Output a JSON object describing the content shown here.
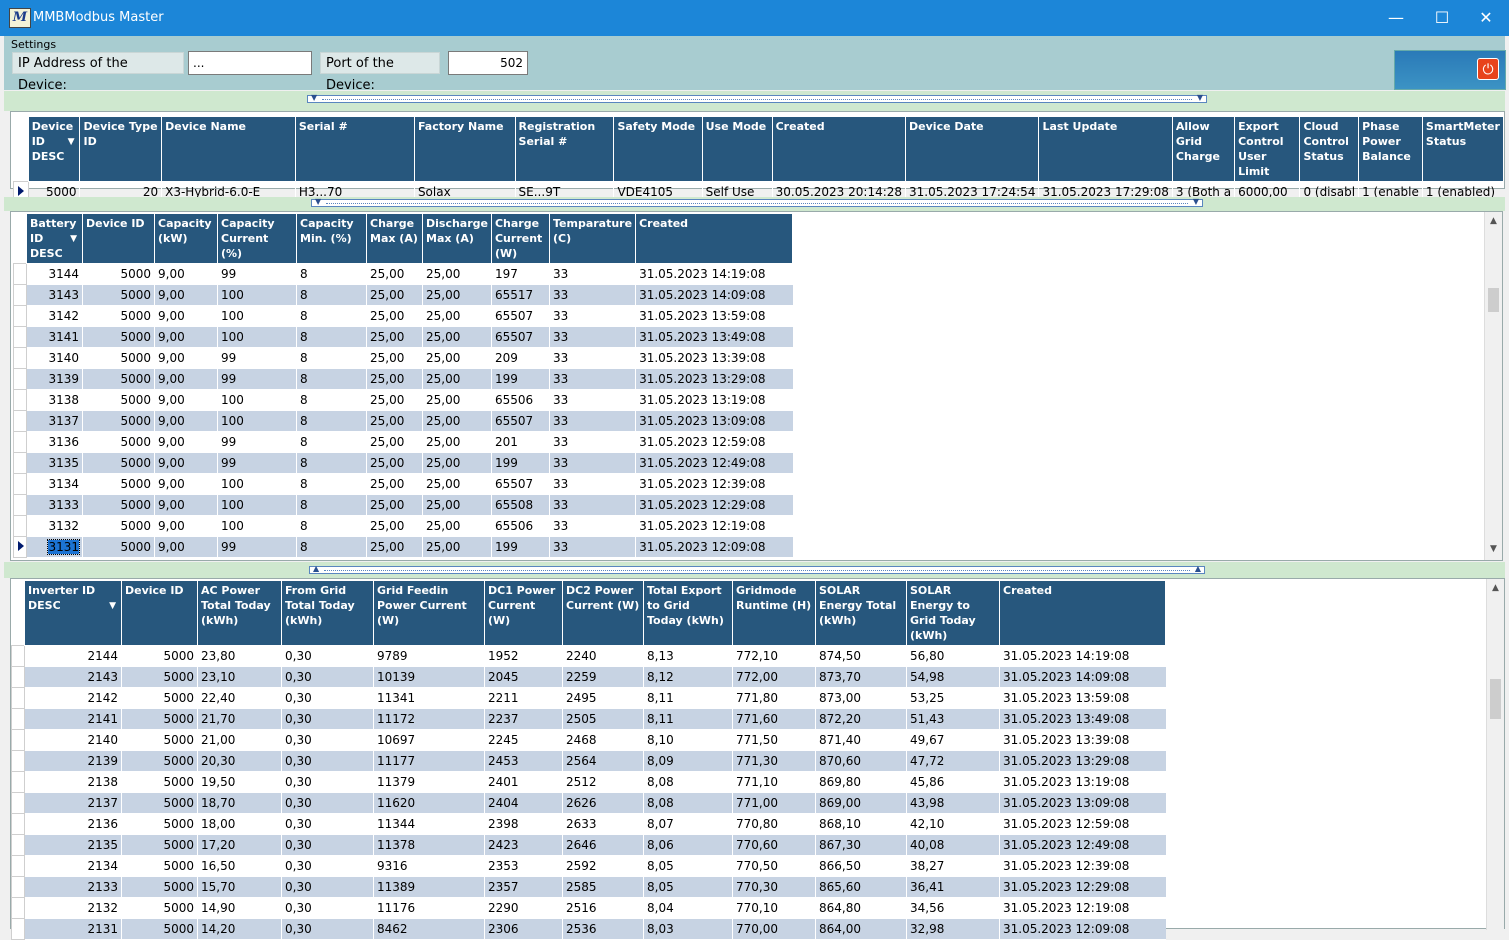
{
  "window": {
    "title": "MMBModbus Master",
    "icon_letter": "M",
    "minimize": "—",
    "maximize": "☐",
    "close": "✕"
  },
  "settings": {
    "group_label": "Settings",
    "ip_label": "IP Address of the Device:",
    "ip_value": "...",
    "port_label": "Port of the Device:",
    "port_value": "502",
    "power_icon": "power-icon"
  },
  "device_grid": {
    "headers": [
      "Device ID DESC",
      "Device Type ID",
      "Device Name",
      "Serial #",
      "Factory Name",
      "Registration Serial #",
      "Safety Mode",
      "Use Mode",
      "Created",
      "Device Date",
      "Last Update",
      "Allow Grid Charge",
      "Export Control User Limit",
      "Cloud Control Status",
      "Phase Power Balance",
      "SmartMeter Status"
    ],
    "rows": [
      [
        "5000",
        "20",
        "X3-Hybrid-6.0-E",
        "H3...70",
        "Solax",
        "SE...9T",
        "VDE4105",
        "Self Use",
        "30.05.2023 20:14:28",
        "31.05.2023 17:24:54",
        "31.05.2023 17:29:08",
        "3 (Both a",
        "6000,00",
        "0 (disabl",
        "1 (enable",
        "1 (enabled)"
      ]
    ]
  },
  "battery_grid": {
    "headers": [
      "Battery ID DESC",
      "Device ID",
      "Capacity (kW)",
      "Capacity Current (%)",
      "Capacity Min. (%)",
      "Charge Max (A)",
      "Discharge Max (A)",
      "Charge Current (W)",
      "Temparature (C)",
      "Created"
    ],
    "rows": [
      [
        "3144",
        "5000",
        "9,00",
        "99",
        "8",
        "25,00",
        "25,00",
        "197",
        "33",
        "31.05.2023 14:19:08"
      ],
      [
        "3143",
        "5000",
        "9,00",
        "100",
        "8",
        "25,00",
        "25,00",
        "65517",
        "33",
        "31.05.2023 14:09:08"
      ],
      [
        "3142",
        "5000",
        "9,00",
        "100",
        "8",
        "25,00",
        "25,00",
        "65507",
        "33",
        "31.05.2023 13:59:08"
      ],
      [
        "3141",
        "5000",
        "9,00",
        "100",
        "8",
        "25,00",
        "25,00",
        "65507",
        "33",
        "31.05.2023 13:49:08"
      ],
      [
        "3140",
        "5000",
        "9,00",
        "99",
        "8",
        "25,00",
        "25,00",
        "209",
        "33",
        "31.05.2023 13:39:08"
      ],
      [
        "3139",
        "5000",
        "9,00",
        "99",
        "8",
        "25,00",
        "25,00",
        "199",
        "33",
        "31.05.2023 13:29:08"
      ],
      [
        "3138",
        "5000",
        "9,00",
        "100",
        "8",
        "25,00",
        "25,00",
        "65506",
        "33",
        "31.05.2023 13:19:08"
      ],
      [
        "3137",
        "5000",
        "9,00",
        "100",
        "8",
        "25,00",
        "25,00",
        "65507",
        "33",
        "31.05.2023 13:09:08"
      ],
      [
        "3136",
        "5000",
        "9,00",
        "99",
        "8",
        "25,00",
        "25,00",
        "201",
        "33",
        "31.05.2023 12:59:08"
      ],
      [
        "3135",
        "5000",
        "9,00",
        "99",
        "8",
        "25,00",
        "25,00",
        "199",
        "33",
        "31.05.2023 12:49:08"
      ],
      [
        "3134",
        "5000",
        "9,00",
        "100",
        "8",
        "25,00",
        "25,00",
        "65507",
        "33",
        "31.05.2023 12:39:08"
      ],
      [
        "3133",
        "5000",
        "9,00",
        "100",
        "8",
        "25,00",
        "25,00",
        "65508",
        "33",
        "31.05.2023 12:29:08"
      ],
      [
        "3132",
        "5000",
        "9,00",
        "100",
        "8",
        "25,00",
        "25,00",
        "65506",
        "33",
        "31.05.2023 12:19:08"
      ],
      [
        "3131",
        "5000",
        "9,00",
        "99",
        "8",
        "25,00",
        "25,00",
        "199",
        "33",
        "31.05.2023 12:09:08"
      ]
    ]
  },
  "inverter_grid": {
    "headers": [
      "Inverter ID DESC",
      "Device ID",
      "AC Power Total Today (kWh)",
      "From Grid Total Today (kWh)",
      "Grid Feedin Power Current (W)",
      "DC1 Power Current (W)",
      "DC2 Power Current (W)",
      "Total Export to Grid Today (kWh)",
      "Gridmode Runtime (H)",
      "SOLAR Energy Total (kWh)",
      "SOLAR Energy to Grid Today (kWh)",
      "Created"
    ],
    "rows": [
      [
        "2144",
        "5000",
        "23,80",
        "0,30",
        "9789",
        "1952",
        "2240",
        "8,13",
        "772,10",
        "874,50",
        "56,80",
        "31.05.2023 14:19:08"
      ],
      [
        "2143",
        "5000",
        "23,10",
        "0,30",
        "10139",
        "2045",
        "2259",
        "8,12",
        "772,00",
        "873,70",
        "54,98",
        "31.05.2023 14:09:08"
      ],
      [
        "2142",
        "5000",
        "22,40",
        "0,30",
        "11341",
        "2211",
        "2495",
        "8,11",
        "771,80",
        "873,00",
        "53,25",
        "31.05.2023 13:59:08"
      ],
      [
        "2141",
        "5000",
        "21,70",
        "0,30",
        "11172",
        "2237",
        "2505",
        "8,11",
        "771,60",
        "872,20",
        "51,43",
        "31.05.2023 13:49:08"
      ],
      [
        "2140",
        "5000",
        "21,00",
        "0,30",
        "10697",
        "2245",
        "2468",
        "8,10",
        "771,50",
        "871,40",
        "49,67",
        "31.05.2023 13:39:08"
      ],
      [
        "2139",
        "5000",
        "20,30",
        "0,30",
        "11177",
        "2453",
        "2564",
        "8,09",
        "771,30",
        "870,60",
        "47,72",
        "31.05.2023 13:29:08"
      ],
      [
        "2138",
        "5000",
        "19,50",
        "0,30",
        "11379",
        "2401",
        "2512",
        "8,08",
        "771,10",
        "869,80",
        "45,86",
        "31.05.2023 13:19:08"
      ],
      [
        "2137",
        "5000",
        "18,70",
        "0,30",
        "11620",
        "2404",
        "2626",
        "8,08",
        "771,00",
        "869,00",
        "43,98",
        "31.05.2023 13:09:08"
      ],
      [
        "2136",
        "5000",
        "18,00",
        "0,30",
        "11344",
        "2398",
        "2633",
        "8,07",
        "770,80",
        "868,10",
        "42,10",
        "31.05.2023 12:59:08"
      ],
      [
        "2135",
        "5000",
        "17,20",
        "0,30",
        "11378",
        "2423",
        "2646",
        "8,06",
        "770,60",
        "867,30",
        "40,08",
        "31.05.2023 12:49:08"
      ],
      [
        "2134",
        "5000",
        "16,50",
        "0,30",
        "9316",
        "2353",
        "2592",
        "8,05",
        "770,50",
        "866,50",
        "38,27",
        "31.05.2023 12:39:08"
      ],
      [
        "2133",
        "5000",
        "15,70",
        "0,30",
        "11389",
        "2357",
        "2585",
        "8,05",
        "770,30",
        "865,60",
        "36,41",
        "31.05.2023 12:29:08"
      ],
      [
        "2132",
        "5000",
        "14,90",
        "0,30",
        "11176",
        "2290",
        "2516",
        "8,04",
        "770,10",
        "864,80",
        "34,56",
        "31.05.2023 12:19:08"
      ],
      [
        "2131",
        "5000",
        "14,20",
        "0,30",
        "8462",
        "2306",
        "2536",
        "8,03",
        "770,00",
        "864,00",
        "32,98",
        "31.05.2023 12:09:08"
      ]
    ]
  },
  "colors": {
    "titlebar": "#1c86d8",
    "header": "#27577d",
    "alt_row": "#c7d3e3",
    "settings_bg": "#a8ccd0",
    "splitter_green": "#cfe8cf"
  }
}
